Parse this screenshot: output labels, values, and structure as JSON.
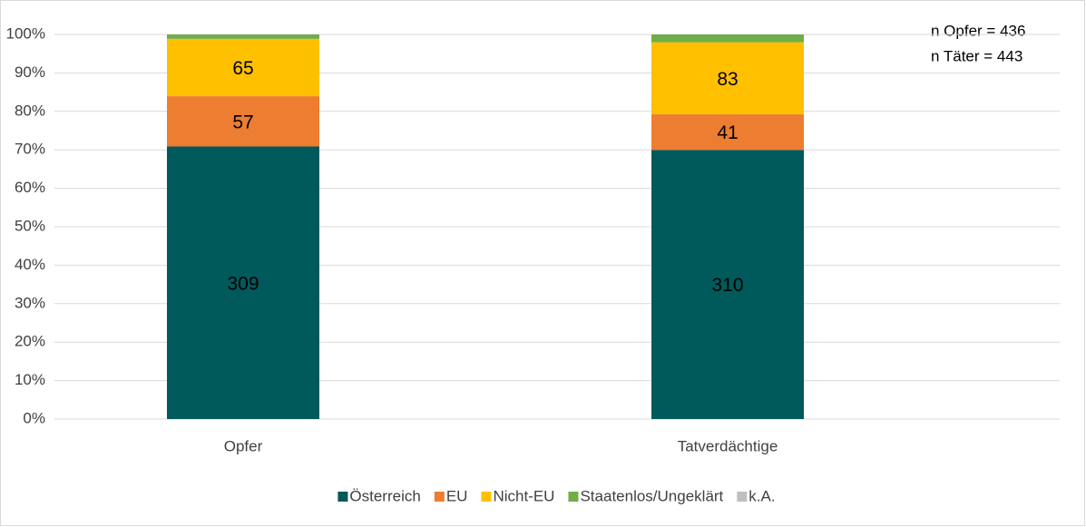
{
  "chart_data": {
    "type": "bar",
    "stacking": "percent",
    "categories": [
      "Opfer",
      "Tatverdächtige"
    ],
    "series": [
      {
        "name": "Österreich",
        "color": "#005a5b",
        "values": [
          309,
          310
        ],
        "show_labels": true
      },
      {
        "name": "EU",
        "color": "#ed7d31",
        "values": [
          57,
          41
        ],
        "show_labels": true
      },
      {
        "name": "Nicht-EU",
        "color": "#ffc000",
        "values": [
          65,
          83
        ],
        "show_labels": true
      },
      {
        "name": "Staatenlos/Ungeklärt",
        "color": "#70ad47",
        "values": [
          5,
          9
        ],
        "show_labels": false
      },
      {
        "name": "k.A.",
        "color": "#bfbfbf",
        "values": [
          0,
          0
        ],
        "show_labels": false
      }
    ],
    "ylim": [
      0,
      100
    ],
    "yticks": [
      {
        "value": 0,
        "label": "0%"
      },
      {
        "value": 10,
        "label": "10%"
      },
      {
        "value": 20,
        "label": "20%"
      },
      {
        "value": 30,
        "label": "30%"
      },
      {
        "value": 40,
        "label": "40%"
      },
      {
        "value": 50,
        "label": "50%"
      },
      {
        "value": 60,
        "label": "60%"
      },
      {
        "value": 70,
        "label": "70%"
      },
      {
        "value": 80,
        "label": "80%"
      },
      {
        "value": 90,
        "label": "90%"
      },
      {
        "value": 100,
        "label": "100%"
      }
    ],
    "grid": true,
    "legend": "bottom",
    "annotations": [
      "n Opfer = 436",
      "n Täter = 443"
    ]
  }
}
